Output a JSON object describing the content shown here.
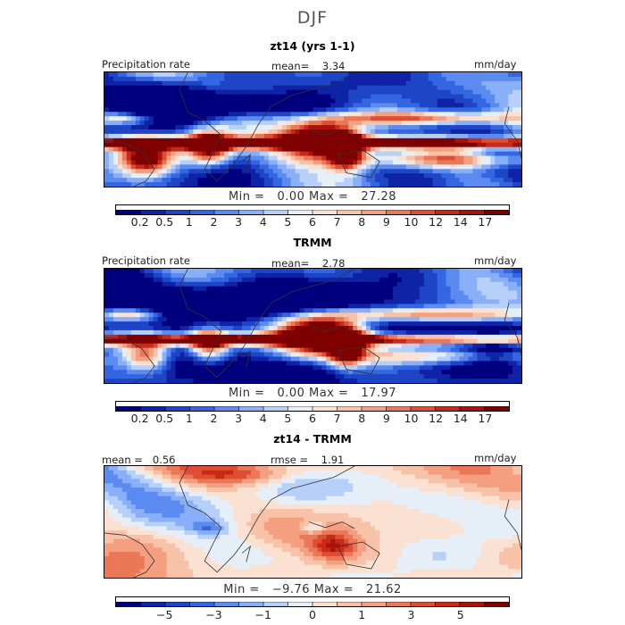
{
  "title": "DJF",
  "colors": {
    "scale": [
      "#00007f",
      "#0e23a6",
      "#1f45c7",
      "#3366e0",
      "#5b8bf0",
      "#88aff7",
      "#b7d0fa",
      "#e6eef8",
      "#fbe1d2",
      "#f8c2a8",
      "#f39f80",
      "#ea7758",
      "#dd4e34",
      "#c92a18",
      "#a8130a",
      "#7f0000"
    ],
    "diff_scale": [
      "#00007f",
      "#0e23a6",
      "#1f45c7",
      "#3366e0",
      "#5b8bf0",
      "#88aff7",
      "#b7d0fa",
      "#e6eef8",
      "#fbe1d2",
      "#f8c2a8",
      "#f39f80",
      "#ea7758",
      "#dd4e34",
      "#c92a18",
      "#a8130a",
      "#7f0000"
    ],
    "coast": "#333333"
  },
  "panels": [
    {
      "title": "zt14 (yrs 1-1)",
      "left_label": "Precipitation rate",
      "center_label": "mean=",
      "center_value": "3.34",
      "right_label": "mm/day",
      "min_label": "Min =",
      "min_value": "0.00",
      "max_label": "Max =",
      "max_value": "27.28",
      "colorbar_ticks": [
        "0.2",
        "0.5",
        "1",
        "2",
        "3",
        "4",
        "5",
        "6",
        "7",
        "8",
        "9",
        "10",
        "12",
        "14",
        "17"
      ]
    },
    {
      "title": "TRMM",
      "left_label": "Precipitation rate",
      "center_label": "mean=",
      "center_value": "2.78",
      "right_label": "mm/day",
      "min_label": "Min =",
      "min_value": "0.00",
      "max_label": "Max =",
      "max_value": "17.97",
      "colorbar_ticks": [
        "0.2",
        "0.5",
        "1",
        "2",
        "3",
        "4",
        "5",
        "6",
        "7",
        "8",
        "9",
        "10",
        "12",
        "14",
        "17"
      ]
    },
    {
      "title": "zt14 - TRMM",
      "left_label": "mean =",
      "left_value": "0.56",
      "center_label": "rmse =",
      "center_value": "1.91",
      "right_label": "mm/day",
      "min_label": "Min =",
      "min_value": "−9.76",
      "max_label": "Max =",
      "max_value": "21.62",
      "colorbar_ticks": [
        "−5",
        "−3",
        "−1",
        "0",
        "1",
        "3",
        "5"
      ]
    }
  ],
  "chart_data": [
    {
      "type": "heatmap",
      "name": "zt14 (yrs 1-1)",
      "units": "mm/day",
      "mean": 3.34,
      "min": 0.0,
      "max": 27.28,
      "levels": [
        0.2,
        0.5,
        1,
        2,
        3,
        4,
        5,
        6,
        7,
        8,
        9,
        10,
        12,
        14,
        17
      ]
    },
    {
      "type": "heatmap",
      "name": "TRMM",
      "units": "mm/day",
      "mean": 2.78,
      "min": 0.0,
      "max": 17.97,
      "levels": [
        0.2,
        0.5,
        1,
        2,
        3,
        4,
        5,
        6,
        7,
        8,
        9,
        10,
        12,
        14,
        17
      ]
    },
    {
      "type": "heatmap",
      "name": "zt14 - TRMM",
      "units": "mm/day",
      "mean": 0.56,
      "rmse": 1.91,
      "min": -9.76,
      "max": 21.62,
      "ticks": [
        -5,
        -3,
        -1,
        0,
        1,
        3,
        5
      ]
    }
  ]
}
